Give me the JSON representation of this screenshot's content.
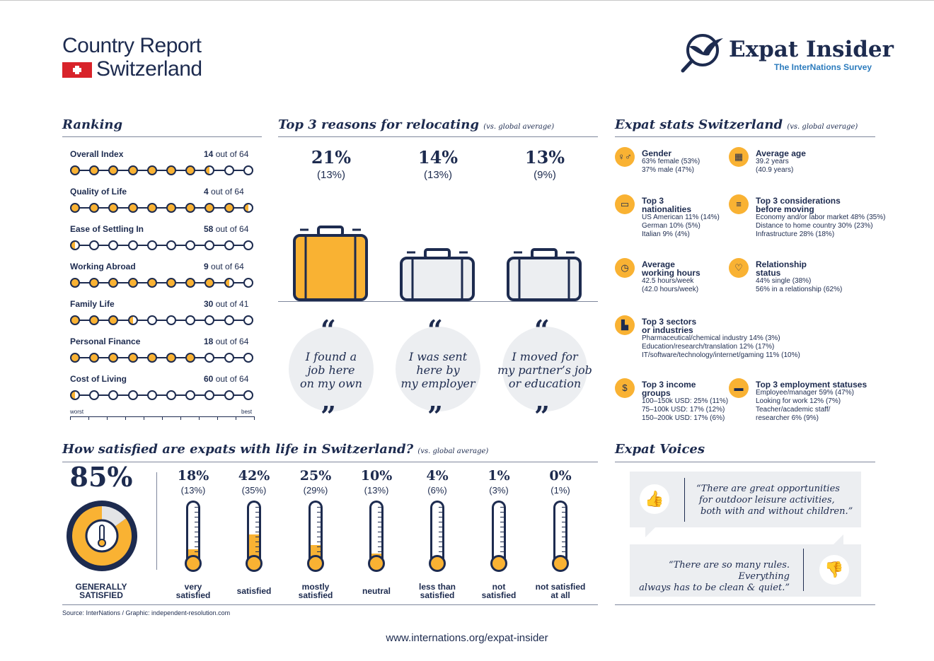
{
  "header": {
    "line1": "Country Report",
    "line2": "Switzerland",
    "brand": "Expat Insider",
    "brand_sub": "The InterNations Survey"
  },
  "colors": {
    "navy": "#1d2b4f",
    "accent": "#f9b233",
    "blue": "#2b7bbd",
    "flag": "#d8232a"
  },
  "ranking": {
    "title": "Ranking",
    "rows": [
      {
        "label": "Overall Index",
        "rank": "14",
        "total": "out of 64",
        "filled": 7.5
      },
      {
        "label": "Quality of Life",
        "rank": "4",
        "total": "out of 64",
        "filled": 9.5
      },
      {
        "label": "Ease of Settling In",
        "rank": "58",
        "total": "out of 64",
        "filled": 0.5
      },
      {
        "label": "Working Abroad",
        "rank": "9",
        "total": "out of 64",
        "filled": 8.5
      },
      {
        "label": "Family Life",
        "rank": "30",
        "total": "out of 41",
        "filled": 3.5
      },
      {
        "label": "Personal Finance",
        "rank": "18",
        "total": "out of 64",
        "filled": 7
      },
      {
        "label": "Cost of Living",
        "rank": "60",
        "total": "out of 64",
        "filled": 0.5
      }
    ],
    "worst": "worst",
    "best": "best"
  },
  "reasons": {
    "title": "Top 3 reasons for relocating",
    "note": "(vs. global average)",
    "items": [
      {
        "pct": "21%",
        "global": "(13%)",
        "text1": "I found a",
        "text2": "job here",
        "text3": "on my own",
        "highlight": true
      },
      {
        "pct": "14%",
        "global": "(13%)",
        "text1": "I was sent",
        "text2": "here by",
        "text3": "my employer",
        "highlight": false
      },
      {
        "pct": "13%",
        "global": "(9%)",
        "text1": "I moved for",
        "text2": "my partner’s job",
        "text3": "or education",
        "highlight": false
      }
    ]
  },
  "stats": {
    "title": "Expat stats Switzerland",
    "note": "(vs. global average)",
    "gender": {
      "h": "Gender",
      "l1": "63% female (53%)",
      "l2": "37% male (47%)"
    },
    "age": {
      "h": "Average age",
      "l1": "39.2 years",
      "l2": "(40.9 years)"
    },
    "nat": {
      "h1": "Top 3",
      "h2": "nationalities",
      "l1": "US American 11% (14%)",
      "l2": "German 10% (5%)",
      "l3": "Italian 9% (4%)"
    },
    "cons": {
      "h1": "Top 3 considerations",
      "h2": "before moving",
      "l1": "Economy and/or labor market 48% (35%)",
      "l2": "Distance to home country 30% (23%)",
      "l3": "Infrastructure 28% (18%)"
    },
    "hours": {
      "h1": "Average",
      "h2": "working hours",
      "l1": "42.5 hours/week",
      "l2": "(42.0 hours/week)"
    },
    "rel": {
      "h1": "Relationship",
      "h2": "status",
      "l1": "44% single (38%)",
      "l2": "56% in a relationship (62%)"
    },
    "sectors": {
      "h1": "Top 3 sectors",
      "h2": "or industries",
      "l1": "Pharmaceutical/chemical industry 14% (3%)",
      "l2": "Education/research/translation 12% (17%)",
      "l3": "IT/software/technology/internet/gaming 11% (10%)"
    },
    "income": {
      "h1": "Top 3 income",
      "h2": "groups",
      "l1": "100–150k USD: 25% (11%)",
      "l2": "75–100k USD: 17% (12%)",
      "l3": "150–200k USD: 17% (6%)"
    },
    "emp": {
      "h": "Top 3 employment statuses",
      "l1": "Employee/manager 59% (47%)",
      "l2": "Looking for work 12% (7%)",
      "l3": "Teacher/academic staff/",
      "l4": "researcher 6% (9%)"
    }
  },
  "satisfaction": {
    "title": "How satisfied are expats with life in Switzerland?",
    "note": "(vs. global average)",
    "overall_pct": "85%",
    "overall_value": 85,
    "overall_l1": "GENERALLY",
    "overall_l2": "SATISFIED",
    "items": [
      {
        "pct": "18%",
        "global": "(13%)",
        "l1": "very",
        "l2": "satisfied",
        "value": 18
      },
      {
        "pct": "42%",
        "global": "(35%)",
        "l1": "",
        "l2": "satisfied",
        "value": 42
      },
      {
        "pct": "25%",
        "global": "(29%)",
        "l1": "mostly",
        "l2": "satisfied",
        "value": 25
      },
      {
        "pct": "10%",
        "global": "(13%)",
        "l1": "",
        "l2": "neutral",
        "value": 10
      },
      {
        "pct": "4%",
        "global": "(6%)",
        "l1": "less than",
        "l2": "satisfied",
        "value": 4
      },
      {
        "pct": "1%",
        "global": "(3%)",
        "l1": "not",
        "l2": "satisfied",
        "value": 1
      },
      {
        "pct": "0%",
        "global": "(1%)",
        "l1": "not satisfied",
        "l2": "at all",
        "value": 0
      }
    ]
  },
  "voices": {
    "title": "Expat Voices",
    "q1a": "“There are great opportunities",
    "q1b": "for outdoor leisure activities,",
    "q1c": "both with and without children.”",
    "q2a": "“There are so many rules. Everything",
    "q2b": "always has to be clean & quiet.”"
  },
  "footer": {
    "source": "Source: InterNations / Graphic: independent-resolution.com",
    "url": "www.internations.org/expat-insider"
  }
}
